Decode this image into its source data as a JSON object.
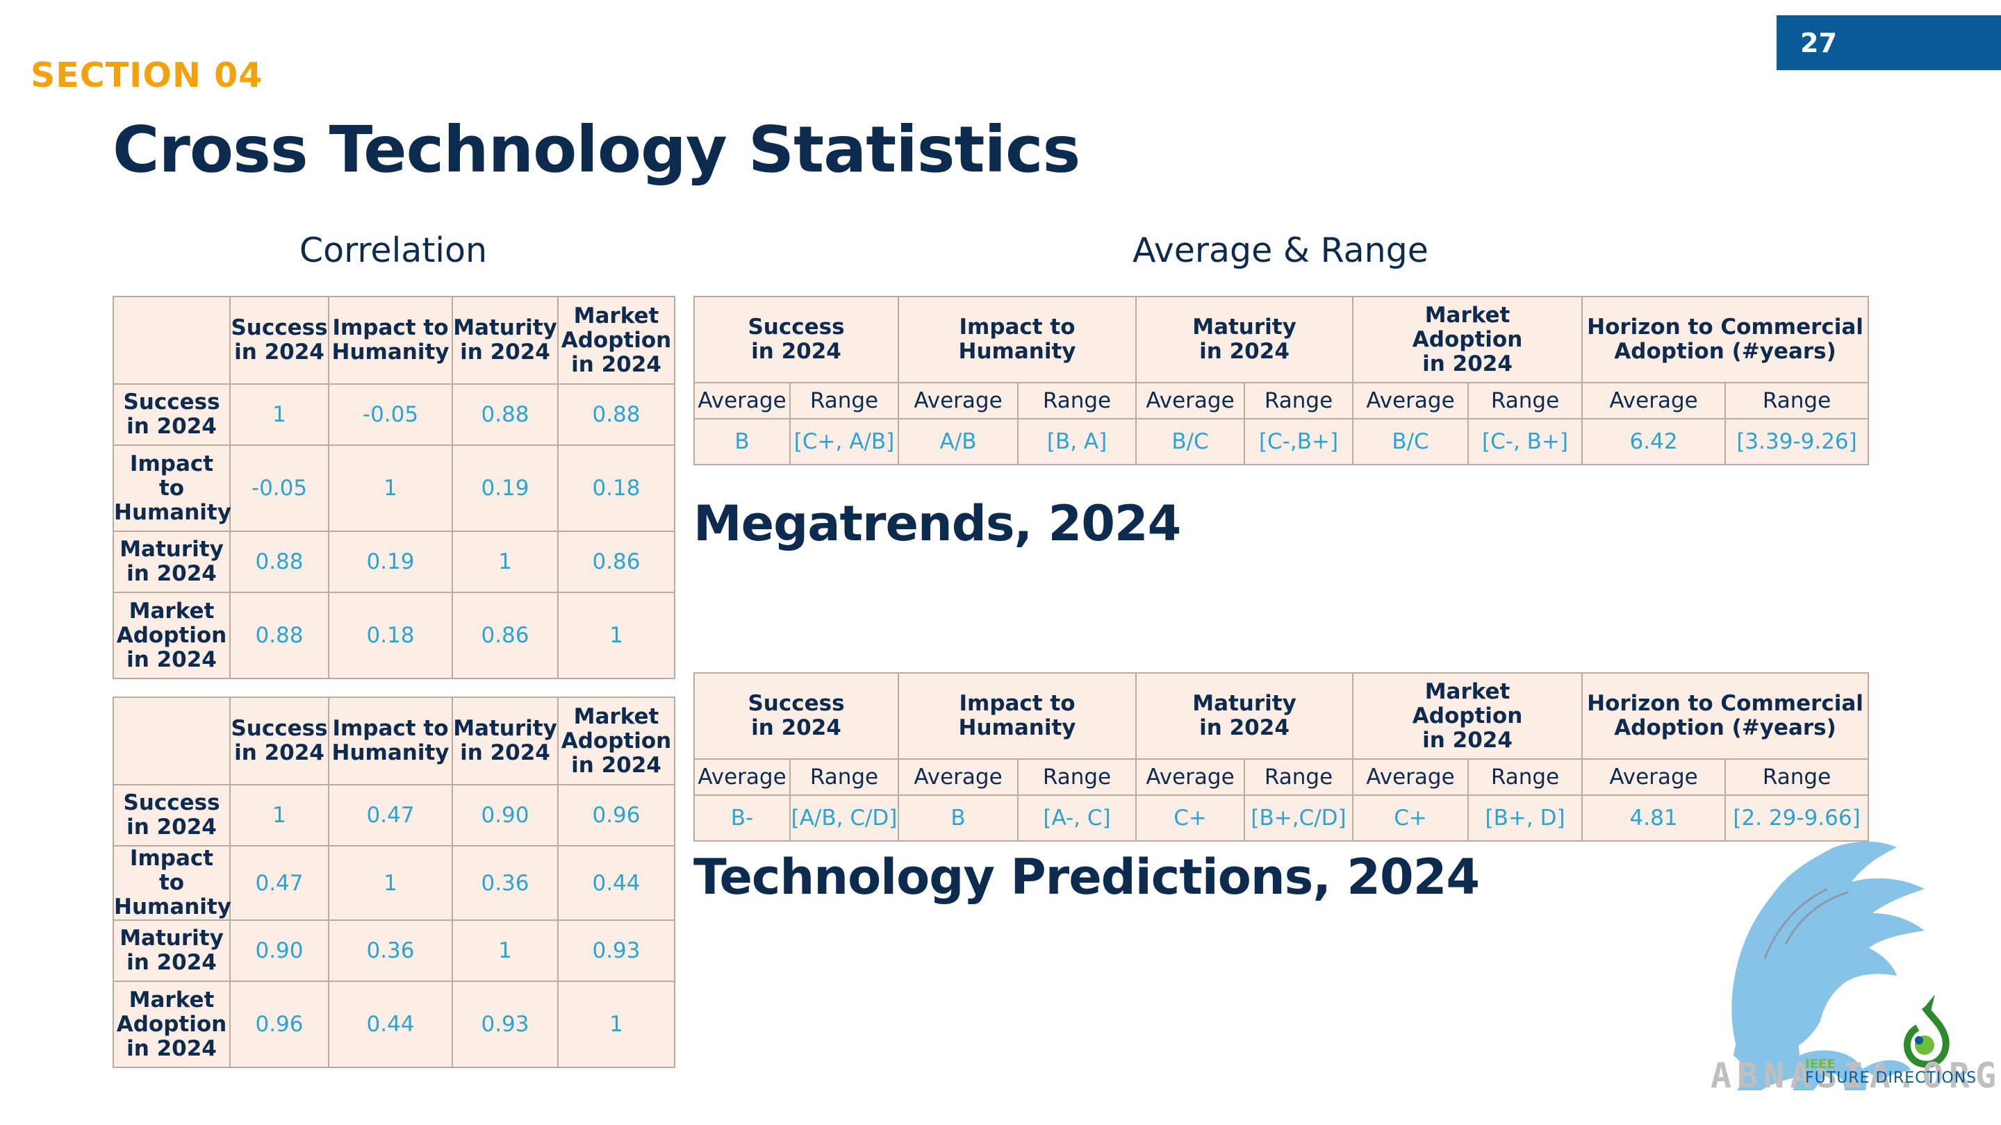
{
  "page_number": "27",
  "section_label": "SECTION 04",
  "title": "Cross Technology Statistics",
  "correlation_subtitle": "Correlation",
  "average_subtitle": "Average & Range",
  "megatrends_heading": "Megatrends, 2024",
  "techpred_heading": "Technology Predictions, 2024",
  "corr_headers": {
    "success": [
      "Success",
      "in 2024"
    ],
    "impact": [
      "Impact to",
      "Humanity"
    ],
    "maturity": [
      "Maturity",
      "in 2024"
    ],
    "market": [
      "Market",
      "Adoption",
      "in 2024"
    ]
  },
  "corr_a": {
    "rows": [
      [
        "1",
        "-0.05",
        "0.88",
        "0.88"
      ],
      [
        "-0.05",
        "1",
        "0.19",
        "0.18"
      ],
      [
        "0.88",
        "0.19",
        "1",
        "0.86"
      ],
      [
        "0.88",
        "0.18",
        "0.86",
        "1"
      ]
    ]
  },
  "corr_b": {
    "rows": [
      [
        "1",
        "0.47",
        "0.90",
        "0.96"
      ],
      [
        "0.47",
        "1",
        "0.36",
        "0.44"
      ],
      [
        "0.90",
        "0.36",
        "1",
        "0.93"
      ],
      [
        "0.96",
        "0.44",
        "0.93",
        "1"
      ]
    ]
  },
  "avg_headers": {
    "success": [
      "Success",
      "in 2024"
    ],
    "impact": "Impact to Humanity",
    "maturity": [
      "Maturity",
      "in 2024"
    ],
    "market": [
      "Market",
      "Adoption",
      "in 2024"
    ],
    "horizon": [
      "Horizon to Commercial",
      "Adoption (#years)"
    ],
    "average": "Average",
    "range": "Range"
  },
  "avg_a": {
    "values": [
      "B",
      "[C+, A/B]",
      "A/B",
      "[B, A]",
      "B/C",
      "[C-,B+]",
      "B/C",
      "[C-, B+]",
      "6.42",
      "[3.39-9.26]"
    ]
  },
  "avg_b": {
    "values": [
      "B-",
      "[A/B, C/D]",
      "B",
      "[A-, C]",
      "C+",
      "[B+,C/D]",
      "C+",
      "[B+, D]",
      "4.81",
      "[2. 29-9.66]"
    ]
  },
  "logo": {
    "name": "griffin-logo",
    "text": "ABNASIA.ORG",
    "sub": "FUTURE DIRECTIONS",
    "ieee": "IEEE"
  },
  "colors": {
    "accent": "#f2a20c",
    "navy": "#0d2a4f",
    "value": "#2aa3d6",
    "cell_bg": "#fdeee5",
    "page_box": "#0a5a9a"
  }
}
